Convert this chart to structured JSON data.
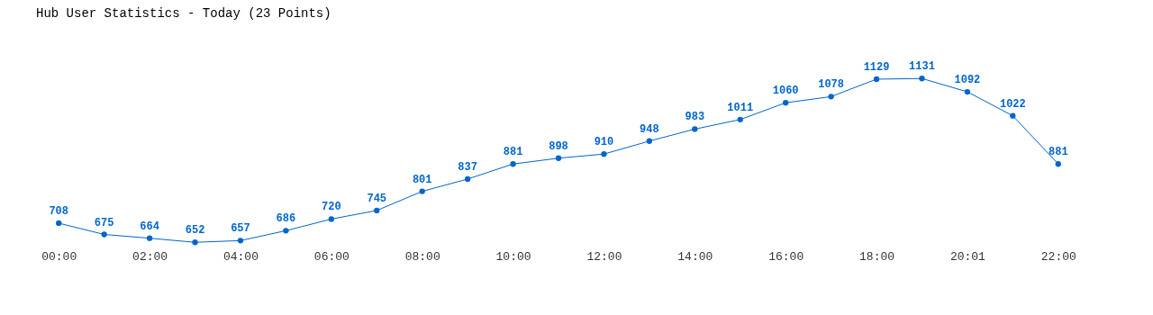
{
  "chart_data": {
    "type": "line",
    "title": "Hub User Statistics - Today (23 Points)",
    "categories": [
      "00:00",
      null,
      "02:00",
      null,
      "04:00",
      null,
      "06:00",
      null,
      "08:00",
      null,
      "10:00",
      null,
      "12:00",
      null,
      "14:00",
      null,
      "16:00",
      null,
      "18:00",
      null,
      "20:01",
      null,
      "22:00"
    ],
    "series": [
      {
        "color": "#0066cc",
        "values": [
          708,
          675,
          664,
          652,
          657,
          686,
          720,
          745,
          801,
          837,
          881,
          898,
          910,
          948,
          983,
          1011,
          1060,
          1078,
          1129,
          1131,
          1092,
          1022,
          881
        ]
      }
    ],
    "data_labels": true,
    "marker": "circle",
    "line_style": "solid"
  }
}
